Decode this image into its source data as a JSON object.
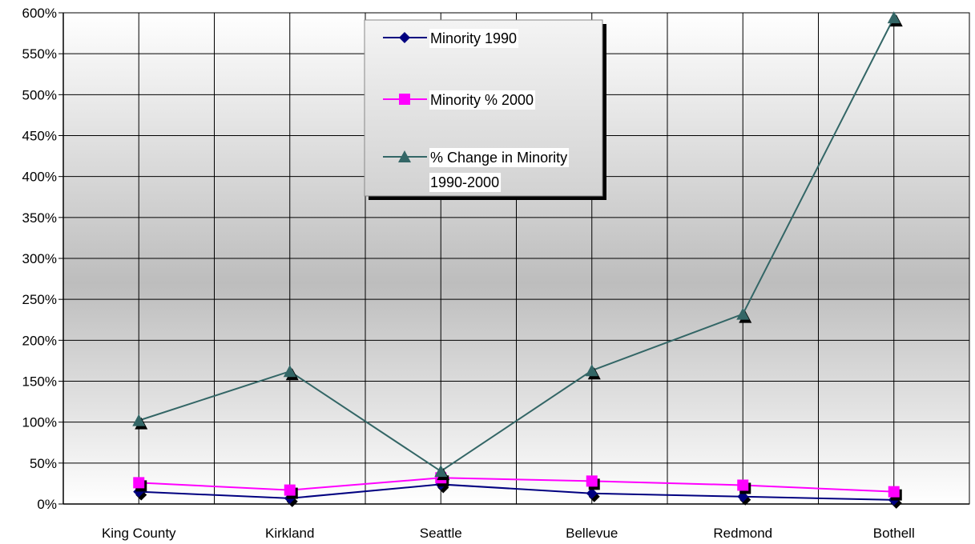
{
  "chart_data": {
    "type": "line",
    "categories": [
      "King County",
      "Kirkland",
      "Seattle",
      "Bellevue",
      "Redmond",
      "Bothell"
    ],
    "series": [
      {
        "name": "Minority 1990",
        "values": [
          15,
          7,
          24,
          13,
          9,
          5
        ],
        "color": "#000080",
        "marker": "diamond"
      },
      {
        "name": "Minority % 2000",
        "values": [
          26,
          17,
          32,
          28,
          23,
          15
        ],
        "color": "#ff00ff",
        "marker": "square"
      },
      {
        "name_lines": [
          "% Change in Minority",
          "1990-2000"
        ],
        "values": [
          102,
          162,
          40,
          163,
          232,
          594
        ],
        "color": "#336666",
        "marker": "triangle"
      }
    ],
    "y_ticks": [
      "0%",
      "50%",
      "100%",
      "150%",
      "200%",
      "250%",
      "300%",
      "350%",
      "400%",
      "450%",
      "500%",
      "550%",
      "600%"
    ],
    "ylim": [
      0,
      600
    ],
    "y_unit": "%",
    "grid": true,
    "legend_position": "top-center",
    "background": "gray-gradient"
  }
}
